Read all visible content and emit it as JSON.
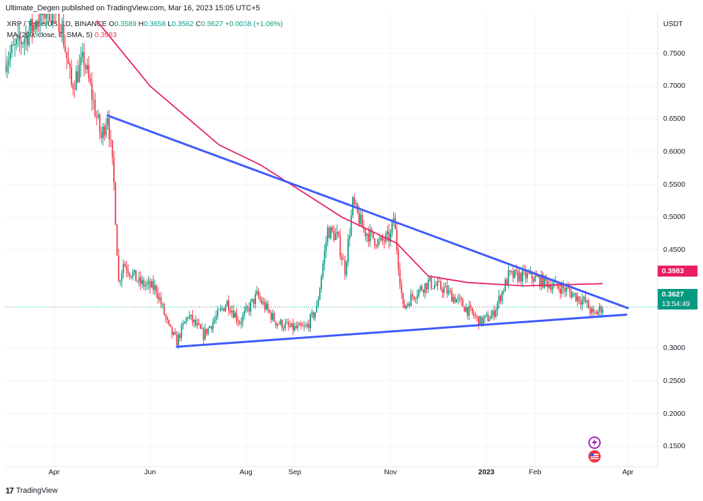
{
  "header": {
    "publisher": "Ultimate_Degen published on TradingView.com, Mar 16, 2023 15:05 UTC+5",
    "symbol_line": "XRP / TetherUS, 1D, BINANCE",
    "o_label": "O",
    "o": "0.3589",
    "h_label": "H",
    "h": "0.3658",
    "l_label": "L",
    "l": "0.3562",
    "c_label": "C",
    "c": "0.3627",
    "change": "+0.0038 (+1.06%)",
    "ma_line": "MA (200, close, 0, SMA, 5)",
    "ma_value": "0.3983"
  },
  "axis": {
    "currency": "USDT",
    "y_ticks": [
      "0.7500",
      "0.7000",
      "0.6500",
      "0.6000",
      "0.5500",
      "0.5000",
      "0.4500",
      "0.3000",
      "0.2500",
      "0.2000",
      "0.1500"
    ],
    "x_ticks": [
      {
        "label": "Apr",
        "bold": false
      },
      {
        "label": "Jun",
        "bold": false
      },
      {
        "label": "Aug",
        "bold": false
      },
      {
        "label": "Sep",
        "bold": false
      },
      {
        "label": "Nov",
        "bold": false
      },
      {
        "label": "2023",
        "bold": true
      },
      {
        "label": "Feb",
        "bold": false
      },
      {
        "label": "Apr",
        "bold": false
      }
    ]
  },
  "tags": {
    "ma_value": "0.3983",
    "price": "0.3627",
    "countdown": "13:54:49"
  },
  "footer": {
    "brand": "TradingView",
    "logo": "17"
  },
  "icons": [
    "lightning-icon",
    "flag-icon"
  ],
  "colors": {
    "up": "#089981",
    "down": "#f23645",
    "ma": "#e91e63",
    "trendline": "#3d5afe",
    "grid": "#f0f3fa"
  },
  "chart_data": {
    "type": "candlestick",
    "symbol": "XRP / TetherUS",
    "interval": "1D",
    "exchange": "BINANCE",
    "y_range": [
      0.1,
      0.8
    ],
    "x_range": [
      "2022-03-01",
      "2023-04-20"
    ],
    "x_labels": [
      "Apr",
      "Jun",
      "Aug",
      "Sep",
      "Nov",
      "2023",
      "Feb",
      "Apr"
    ],
    "y_ticks": [
      0.75,
      0.7,
      0.65,
      0.6,
      0.55,
      0.5,
      0.45,
      0.3,
      0.25,
      0.2,
      0.15
    ],
    "last_price": 0.3627,
    "ma200_last": 0.3983,
    "close_path": [
      [
        "2022-03-01",
        0.74
      ],
      [
        "2022-03-15",
        0.78
      ],
      [
        "2022-03-28",
        0.82
      ],
      [
        "2022-04-05",
        0.8
      ],
      [
        "2022-04-12",
        0.7
      ],
      [
        "2022-04-20",
        0.74
      ],
      [
        "2022-05-01",
        0.62
      ],
      [
        "2022-05-05",
        0.66
      ],
      [
        "2022-05-09",
        0.55
      ],
      [
        "2022-05-12",
        0.4
      ],
      [
        "2022-05-15",
        0.43
      ],
      [
        "2022-05-25",
        0.4
      ],
      [
        "2022-06-05",
        0.39
      ],
      [
        "2022-06-13",
        0.33
      ],
      [
        "2022-06-18",
        0.31
      ],
      [
        "2022-06-25",
        0.35
      ],
      [
        "2022-07-05",
        0.32
      ],
      [
        "2022-07-20",
        0.37
      ],
      [
        "2022-07-28",
        0.34
      ],
      [
        "2022-08-08",
        0.38
      ],
      [
        "2022-08-20",
        0.34
      ],
      [
        "2022-08-30",
        0.33
      ],
      [
        "2022-09-08",
        0.33
      ],
      [
        "2022-09-15",
        0.36
      ],
      [
        "2022-09-22",
        0.48
      ],
      [
        "2022-09-28",
        0.47
      ],
      [
        "2022-10-03",
        0.42
      ],
      [
        "2022-10-08",
        0.52
      ],
      [
        "2022-10-15",
        0.48
      ],
      [
        "2022-10-25",
        0.46
      ],
      [
        "2022-11-01",
        0.47
      ],
      [
        "2022-11-03",
        0.5
      ],
      [
        "2022-11-09",
        0.36
      ],
      [
        "2022-11-15",
        0.38
      ],
      [
        "2022-11-25",
        0.4
      ],
      [
        "2022-12-05",
        0.39
      ],
      [
        "2022-12-15",
        0.37
      ],
      [
        "2022-12-28",
        0.34
      ],
      [
        "2023-01-05",
        0.35
      ],
      [
        "2023-01-15",
        0.41
      ],
      [
        "2023-01-28",
        0.41
      ],
      [
        "2023-02-08",
        0.4
      ],
      [
        "2023-02-20",
        0.39
      ],
      [
        "2023-03-05",
        0.37
      ],
      [
        "2023-03-10",
        0.35
      ],
      [
        "2023-03-16",
        0.3627
      ]
    ],
    "ma200": [
      [
        "2022-04-28",
        0.8
      ],
      [
        "2022-06-01",
        0.7
      ],
      [
        "2022-07-15",
        0.61
      ],
      [
        "2022-08-10",
        0.58
      ],
      [
        "2022-09-05",
        0.54
      ],
      [
        "2022-10-01",
        0.5
      ],
      [
        "2022-11-05",
        0.46
      ],
      [
        "2022-11-25",
        0.41
      ],
      [
        "2022-12-20",
        0.4
      ],
      [
        "2023-01-25",
        0.395
      ],
      [
        "2023-03-16",
        0.3983
      ]
    ],
    "trendlines": [
      {
        "name": "upper",
        "from": [
          "2022-05-05",
          0.655
        ],
        "to": [
          "2023-04-01",
          0.361
        ]
      },
      {
        "name": "lower",
        "from": [
          "2022-06-18",
          0.302
        ],
        "to": [
          "2023-03-31",
          0.351
        ]
      }
    ]
  }
}
